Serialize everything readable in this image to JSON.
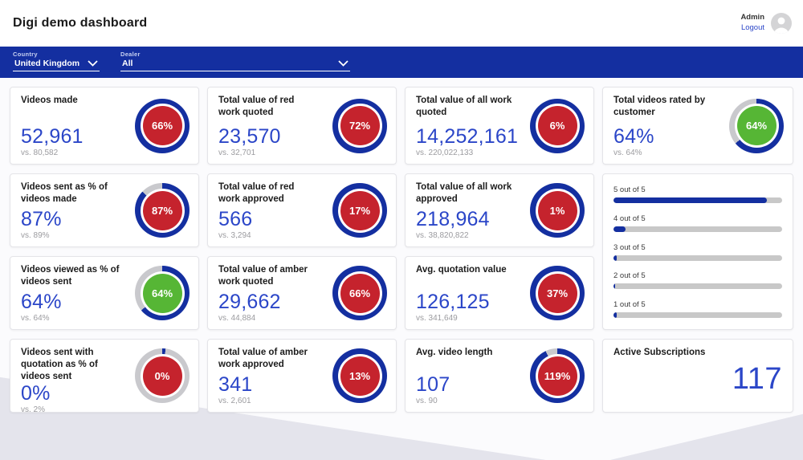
{
  "header": {
    "title": "Digi demo dashboard",
    "user_name": "Admin",
    "logout_label": "Logout"
  },
  "filters": {
    "country": {
      "label": "Country",
      "value": "United Kingdom"
    },
    "dealer": {
      "label": "Dealer",
      "value": "All"
    }
  },
  "colors": {
    "brand_blue": "#142fa0",
    "ring_blue": "#142fa0",
    "ring_track": "#c9c9cd",
    "value_blue": "#2b46c8",
    "red": "#c5232d",
    "green": "#56b635"
  },
  "cards": [
    {
      "title": "Videos made",
      "value": "52,961",
      "vs": "vs. 80,582",
      "gauge": {
        "label": "66%",
        "ring_pct": 100,
        "center": "red"
      }
    },
    {
      "title": "Total value of red work quoted",
      "value": "23,570",
      "vs": "vs. 32,701",
      "gauge": {
        "label": "72%",
        "ring_pct": 100,
        "center": "red"
      }
    },
    {
      "title": "Total value of all work quoted",
      "value": "14,252,161",
      "vs": "vs. 220,022,133",
      "gauge": {
        "label": "6%",
        "ring_pct": 100,
        "center": "red"
      }
    },
    {
      "title": "Videos sent as % of videos made",
      "value": "87%",
      "vs": "vs. 89%",
      "gauge": {
        "label": "87%",
        "ring_pct": 87,
        "center": "red"
      }
    },
    {
      "title": "Total value of red work approved",
      "value": "566",
      "vs": "vs. 3,294",
      "gauge": {
        "label": "17%",
        "ring_pct": 100,
        "center": "red"
      }
    },
    {
      "title": "Total value of all work approved",
      "value": "218,964",
      "vs": "vs. 38,820,822",
      "gauge": {
        "label": "1%",
        "ring_pct": 100,
        "center": "red"
      }
    },
    {
      "title": "Videos viewed as % of videos sent",
      "value": "64%",
      "vs": "vs. 64%",
      "gauge": {
        "label": "64%",
        "ring_pct": 64,
        "center": "green"
      }
    },
    {
      "title": "Total value of amber work quoted",
      "value": "29,662",
      "vs": "vs. 44,884",
      "gauge": {
        "label": "66%",
        "ring_pct": 100,
        "center": "red"
      }
    },
    {
      "title": "Avg. quotation value",
      "value": "126,125",
      "vs": "vs. 341,649",
      "gauge": {
        "label": "37%",
        "ring_pct": 100,
        "center": "red"
      }
    },
    {
      "title": "Videos sent with quotation as % of videos sent",
      "value": "0%",
      "vs": "vs. 2%",
      "gauge": {
        "label": "0%",
        "ring_pct": 2,
        "center": "red"
      }
    },
    {
      "title": "Total value of amber work approved",
      "value": "341",
      "vs": "vs. 2,601",
      "gauge": {
        "label": "13%",
        "ring_pct": 100,
        "center": "red"
      }
    },
    {
      "title": "Avg. video length",
      "value": "107",
      "vs": "vs. 90",
      "gauge": {
        "label": "119%",
        "ring_pct": 93,
        "center": "red"
      }
    }
  ],
  "rated_card": {
    "title": "Total videos rated by customer",
    "value": "64%",
    "vs": "vs. 64%",
    "gauge": {
      "label": "64%",
      "ring_pct": 64,
      "center": "green"
    }
  },
  "ratings": {
    "items": [
      {
        "label": "5 out of 5",
        "pct": 91
      },
      {
        "label": "4 out of 5",
        "pct": 7
      },
      {
        "label": "3 out of 5",
        "pct": 2
      },
      {
        "label": "2 out of 5",
        "pct": 1
      },
      {
        "label": "1 out of 5",
        "pct": 2
      }
    ]
  },
  "subscriptions": {
    "title": "Active Subscriptions",
    "value": "117"
  }
}
